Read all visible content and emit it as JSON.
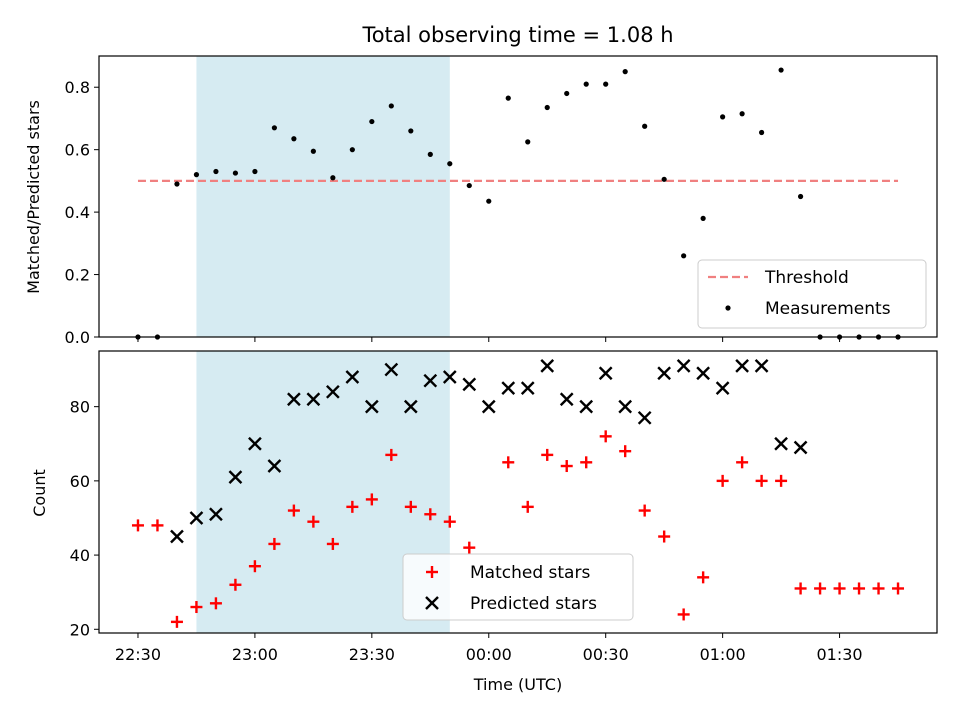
{
  "chart_data": [
    {
      "type": "scatter",
      "title": "Total observing time = 1.08 h",
      "ylabel": "Matched/Predicted stars",
      "ylim": [
        0,
        0.9
      ],
      "yticks": [
        0.0,
        0.2,
        0.4,
        0.6,
        0.8
      ],
      "ytick_labels": [
        "0.0",
        "0.2",
        "0.4",
        "0.6",
        "0.8"
      ],
      "xlim_minutes": [
        -10,
        205
      ],
      "shaded_interval_minutes": [
        15,
        80
      ],
      "shade_color": "#add8e6",
      "legend_position": "lower-right",
      "threshold": {
        "name": "Threshold",
        "value": 0.5,
        "x_start_minutes": 0,
        "x_end_minutes": 195,
        "color": "#f08080",
        "style": "dashed"
      },
      "series": [
        {
          "name": "Measurements",
          "color": "#000000",
          "marker": "dot",
          "x_minutes": [
            0,
            5,
            10,
            15,
            20,
            25,
            30,
            35,
            40,
            45,
            50,
            55,
            60,
            65,
            70,
            75,
            80,
            85,
            90,
            95,
            100,
            105,
            110,
            115,
            120,
            125,
            130,
            135,
            140,
            145,
            150,
            155,
            160,
            165,
            170,
            175,
            180,
            185,
            190,
            195
          ],
          "values": [
            0.0,
            0.0,
            0.49,
            0.52,
            0.53,
            0.525,
            0.53,
            0.67,
            0.635,
            0.595,
            0.51,
            0.6,
            0.69,
            0.74,
            0.66,
            0.585,
            0.555,
            0.485,
            0.435,
            0.765,
            0.625,
            0.735,
            0.78,
            0.81,
            0.81,
            0.85,
            0.675,
            0.505,
            0.26,
            0.38,
            0.705,
            0.715,
            0.655,
            0.855,
            0.45,
            0.0,
            0.0,
            0.0,
            0.0,
            0.0
          ]
        }
      ]
    },
    {
      "type": "scatter",
      "xlabel": "Time (UTC)",
      "ylabel": "Count",
      "ylim": [
        19,
        95
      ],
      "yticks": [
        20,
        40,
        60,
        80
      ],
      "ytick_labels": [
        "20",
        "40",
        "60",
        "80"
      ],
      "xlim_minutes": [
        -10,
        205
      ],
      "xticks_minutes": [
        0,
        30,
        60,
        90,
        120,
        150,
        180
      ],
      "xtick_labels": [
        "22:30",
        "23:00",
        "23:30",
        "00:00",
        "00:30",
        "01:00",
        "01:30"
      ],
      "shaded_interval_minutes": [
        15,
        80
      ],
      "shade_color": "#add8e6",
      "legend_position": "lower-center",
      "series": [
        {
          "name": "Matched stars",
          "color": "#ff0000",
          "marker": "plus",
          "x_minutes": [
            0,
            5,
            10,
            15,
            20,
            25,
            30,
            35,
            40,
            45,
            50,
            55,
            60,
            65,
            70,
            75,
            80,
            85,
            90,
            95,
            100,
            105,
            110,
            115,
            120,
            125,
            130,
            135,
            140,
            145,
            150,
            155,
            160,
            165,
            170,
            175,
            180,
            185,
            190,
            195
          ],
          "values": [
            48,
            48,
            22,
            26,
            27,
            32,
            37,
            43,
            52,
            49,
            43,
            53,
            55,
            67,
            53,
            51,
            49,
            42,
            null,
            65,
            53,
            67,
            64,
            65,
            72,
            68,
            52,
            45,
            24,
            34,
            60,
            65,
            60,
            60,
            31,
            31,
            31,
            31,
            31,
            31
          ]
        },
        {
          "name": "Predicted stars",
          "color": "#000000",
          "marker": "x",
          "x_minutes": [
            10,
            15,
            20,
            25,
            30,
            35,
            40,
            45,
            50,
            55,
            60,
            65,
            70,
            75,
            80,
            85,
            90,
            95,
            100,
            105,
            110,
            115,
            120,
            125,
            130,
            135,
            140,
            145,
            150,
            155,
            160,
            165,
            170
          ],
          "values": [
            45,
            50,
            51,
            61,
            70,
            64,
            82,
            82,
            84,
            88,
            80,
            90,
            80,
            87,
            88,
            86,
            80,
            85,
            85,
            91,
            82,
            80,
            89,
            80,
            77,
            89,
            91,
            89,
            85,
            91,
            91,
            70,
            69
          ]
        }
      ]
    }
  ]
}
